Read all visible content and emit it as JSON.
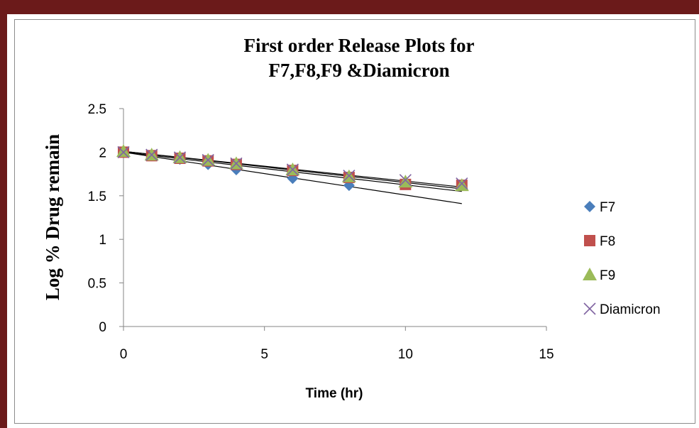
{
  "chart_data": {
    "type": "scatter",
    "title_lines": [
      "First order Release Plots for",
      "F7,F8,F9 &Diamicron"
    ],
    "xlabel": "Time (hr)",
    "ylabel": "Log % Drug remain",
    "xlim": [
      0,
      15
    ],
    "ylim": [
      0,
      2.5
    ],
    "xticks": [
      "0",
      "5",
      "10",
      "15"
    ],
    "yticks": [
      "0",
      "0.5",
      "1",
      "1.5",
      "2",
      "2.5"
    ],
    "grid": false,
    "legend_position": "right",
    "series": [
      {
        "name": "F7",
        "marker": "diamond",
        "color": "#4a7ebb",
        "x": [
          0,
          1,
          2,
          3,
          4,
          6,
          8,
          10,
          12
        ],
        "y": [
          2.0,
          1.96,
          1.92,
          1.86,
          1.8,
          1.7,
          1.62,
          1.65,
          1.62
        ]
      },
      {
        "name": "F8",
        "marker": "square",
        "color": "#c0504d",
        "x": [
          0,
          1,
          2,
          3,
          4,
          6,
          8,
          10,
          12
        ],
        "y": [
          2.0,
          1.96,
          1.93,
          1.9,
          1.86,
          1.79,
          1.71,
          1.63,
          1.62
        ]
      },
      {
        "name": "F9",
        "marker": "triangle",
        "color": "#9bbb59",
        "x": [
          0,
          1,
          2,
          3,
          4,
          6,
          8,
          10,
          12
        ],
        "y": [
          2.01,
          1.97,
          1.94,
          1.91,
          1.87,
          1.8,
          1.72,
          1.66,
          1.62
        ]
      },
      {
        "name": "Diamicron",
        "marker": "x",
        "color": "#8064a2",
        "x": [
          0,
          1,
          2,
          3,
          4,
          6,
          8,
          10,
          12
        ],
        "y": [
          2.0,
          1.97,
          1.94,
          1.91,
          1.87,
          1.8,
          1.73,
          1.68,
          1.64
        ]
      }
    ],
    "trendlines": [
      {
        "x": [
          0,
          12
        ],
        "y": [
          2.0,
          1.41
        ]
      },
      {
        "x": [
          0,
          12
        ],
        "y": [
          2.0,
          1.55
        ]
      },
      {
        "x": [
          0,
          12
        ],
        "y": [
          2.01,
          1.58
        ]
      },
      {
        "x": [
          0,
          12
        ],
        "y": [
          2.01,
          1.6
        ]
      }
    ]
  }
}
